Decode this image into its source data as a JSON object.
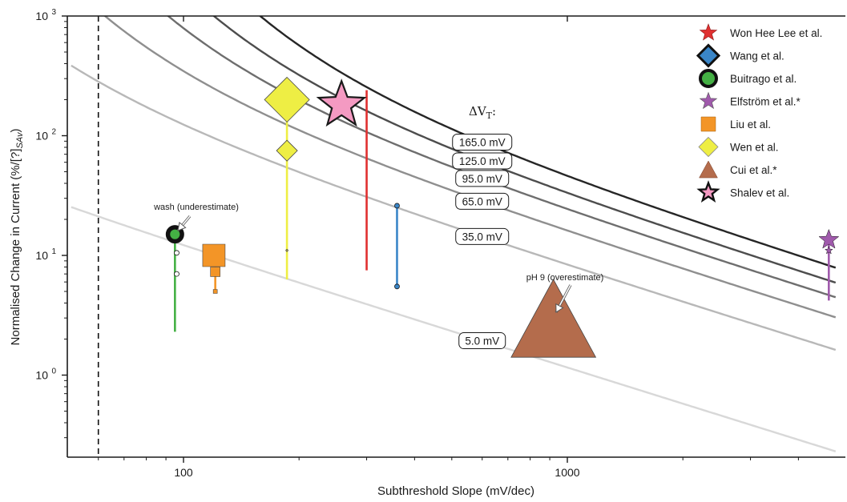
{
  "chart_data": {
    "type": "scatter",
    "title": "",
    "xlabel": "Subthreshold Slope (mV/dec)",
    "ylabel": "Normalised Change in Current (%/[?]",
    "ylabel_subscript": "SAv",
    "ylabel_suffix": ")",
    "xscale": "log",
    "yscale": "log",
    "xlim": [
      51,
      5000
    ],
    "ylim": [
      0.2,
      1000
    ],
    "x_ticks": [
      {
        "value": 100,
        "label": "100"
      },
      {
        "value": 1000,
        "label": "1000"
      }
    ],
    "y_ticks": [
      {
        "value": 1,
        "label": "10",
        "exp": "0"
      },
      {
        "value": 10,
        "label": "10",
        "exp": "1"
      },
      {
        "value": 100,
        "label": "10",
        "exp": "2"
      },
      {
        "value": 1000,
        "label": "10",
        "exp": "3"
      }
    ],
    "reference_line_x": 60,
    "curve_heading": "ΔV",
    "curve_heading_sub": "T",
    "curve_heading_suffix": ":",
    "curves": [
      {
        "label": "5.0 mV",
        "dvt": 5,
        "color": "#d8d8d8",
        "label_x": 600
      },
      {
        "label": "35.0 mV",
        "dvt": 35,
        "color": "#b8b8b8",
        "label_x": 600
      },
      {
        "label": "65.0 mV",
        "dvt": 65,
        "color": "#8f8f8f",
        "label_x": 600
      },
      {
        "label": "95.0 mV",
        "dvt": 95,
        "color": "#6e6e6e",
        "label_x": 600
      },
      {
        "label": "125.0 mV",
        "dvt": 125,
        "color": "#4d4d4d",
        "label_x": 600
      },
      {
        "label": "165.0 mV",
        "dvt": 165,
        "color": "#262626",
        "label_x": 600
      }
    ],
    "series": [
      {
        "name": "Won Hee Lee et al.",
        "marker": "star",
        "color": "#e03030",
        "points": [],
        "range": {
          "x": 300,
          "y_min": 7.5,
          "y_max": 240
        }
      },
      {
        "name": "Wang et al.",
        "marker": "diamond",
        "color": "#3a86c8",
        "points": [
          {
            "x": 360,
            "y": 26
          },
          {
            "x": 360,
            "y": 5.5
          }
        ],
        "range": {
          "x": 360,
          "y_min": 5.5,
          "y_max": 26
        }
      },
      {
        "name": "Buitrago et al.",
        "marker": "circle",
        "color": "#44b044",
        "points": [
          {
            "x": 95,
            "y": 15
          },
          {
            "x": 96,
            "y": 10.5
          },
          {
            "x": 96,
            "y": 7
          }
        ],
        "range": {
          "x": 95,
          "y_min": 2.3,
          "y_max": 15
        }
      },
      {
        "name": "Elfström et al.*",
        "marker": "star",
        "color": "#a05aac",
        "points": [
          {
            "x": 4800,
            "y": 13.5
          },
          {
            "x": 4800,
            "y": 11
          }
        ],
        "range": {
          "x": 4800,
          "y_min": 4.2,
          "y_max": 13.5
        }
      },
      {
        "name": "Liu et al.",
        "marker": "square",
        "color": "#f39527",
        "points": [
          {
            "x": 120,
            "y": 10
          },
          {
            "x": 121,
            "y": 7.3
          },
          {
            "x": 121,
            "y": 5
          }
        ],
        "range": {
          "x": 121,
          "y_min": 5,
          "y_max": 10
        }
      },
      {
        "name": "Wen et al.",
        "marker": "diamond",
        "color": "#eeee44",
        "points": [
          {
            "x": 186,
            "y": 200
          },
          {
            "x": 186,
            "y": 75
          },
          {
            "x": 186,
            "y": 11
          }
        ],
        "range": {
          "x": 186,
          "y_min": 6.3,
          "y_max": 200
        }
      },
      {
        "name": "Cui et al.*",
        "marker": "triangle",
        "color": "#b46c4c",
        "points": [
          {
            "x": 920,
            "y": 2.5
          }
        ],
        "range": null
      },
      {
        "name": "Shalev et al.",
        "marker": "star",
        "color": "#f49ac2",
        "points": [
          {
            "x": 258,
            "y": 180
          }
        ],
        "range": null
      }
    ],
    "annotations": [
      {
        "text": "wash (underestimate)",
        "x": 95,
        "y": 15
      },
      {
        "text": "pH 9 (overestimate)",
        "x": 920,
        "y": 3.4
      }
    ],
    "grid": false,
    "legend_position": "top-right"
  }
}
